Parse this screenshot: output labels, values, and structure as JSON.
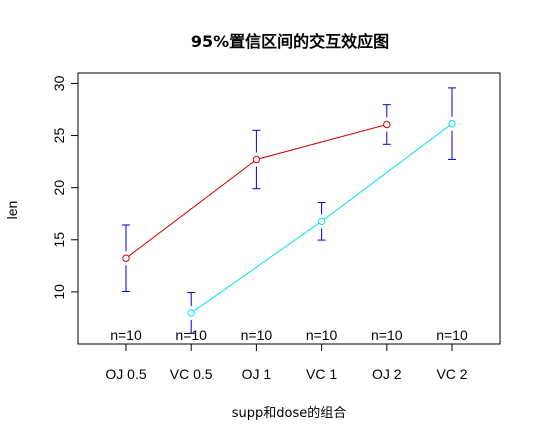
{
  "chart_data": {
    "type": "line",
    "title": "95%置信区间的交互效应图",
    "xlabel": "supp和dose的组合",
    "ylabel": "len",
    "categories": [
      "OJ 0.5",
      "VC 0.5",
      "OJ 1",
      "VC 1",
      "OJ 2",
      "VC 2"
    ],
    "ylim": [
      5,
      31
    ],
    "yticks": [
      10,
      15,
      20,
      25,
      30
    ],
    "series": [
      {
        "color": "#CC0000",
        "points": [
          {
            "category": "OJ 0.5",
            "mean": 13.23,
            "lower": 10.04,
            "upper": 16.42
          },
          {
            "category": "OJ 1",
            "mean": 22.7,
            "lower": 19.9,
            "upper": 25.5
          },
          {
            "category": "OJ 2",
            "mean": 26.06,
            "lower": 24.16,
            "upper": 27.96
          }
        ]
      },
      {
        "color": "#00E5EE",
        "points": [
          {
            "category": "VC 0.5",
            "mean": 7.98,
            "lower": 6.02,
            "upper": 9.94
          },
          {
            "category": "VC 1",
            "mean": 16.77,
            "lower": 14.97,
            "upper": 18.57
          },
          {
            "category": "VC 2",
            "mean": 26.14,
            "lower": 22.71,
            "upper": 29.57
          }
        ]
      }
    ],
    "error_bar_color": "#0000CC",
    "n_labels": [
      "n=10",
      "n=10",
      "n=10",
      "n=10",
      "n=10",
      "n=10"
    ]
  }
}
